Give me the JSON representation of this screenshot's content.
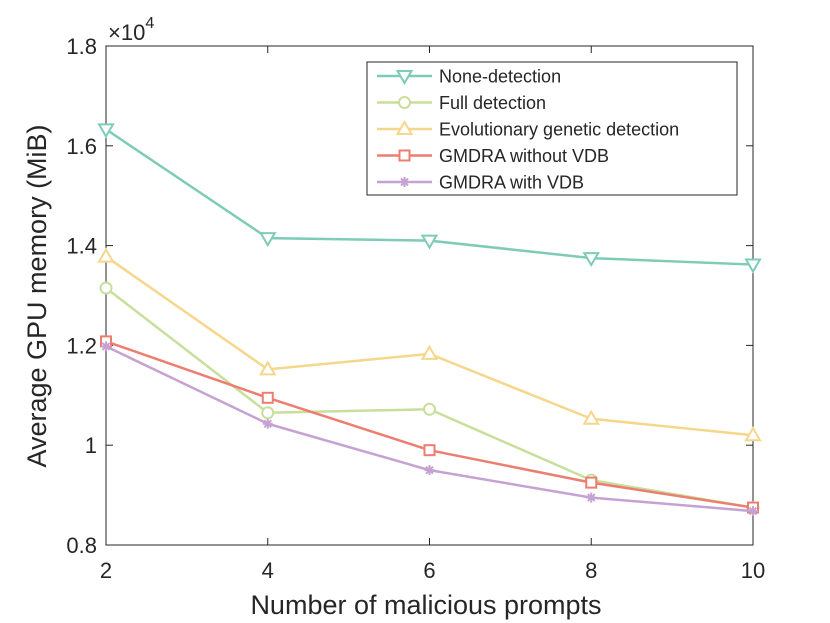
{
  "chart_data": {
    "type": "line",
    "title": "",
    "xlabel": "Number of malicious prompts",
    "ylabel": "Average GPU memory (MiB)",
    "y_multiplier_base": "×10",
    "y_multiplier_exp": "4",
    "x": [
      2,
      4,
      6,
      8,
      10
    ],
    "xlim": [
      2,
      10
    ],
    "ylim": [
      0.8,
      1.8
    ],
    "x_ticks": [
      2,
      4,
      6,
      8,
      10
    ],
    "x_tick_labels": [
      "2",
      "4",
      "6",
      "8",
      "10"
    ],
    "y_ticks": [
      0.8,
      1.0,
      1.2,
      1.4,
      1.6,
      1.8
    ],
    "y_tick_labels": [
      "0.8",
      "1",
      "1.2",
      "1.4",
      "1.6",
      "1.8"
    ],
    "grid": false,
    "legend_position": "top-right",
    "series": [
      {
        "name": "None-detection",
        "color": "#7ecbb7",
        "marker": "triangle-down",
        "values": [
          1.633,
          1.415,
          1.41,
          1.375,
          1.362
        ]
      },
      {
        "name": "Full detection",
        "color": "#c8df9c",
        "marker": "circle",
        "values": [
          1.315,
          1.065,
          1.072,
          0.93,
          0.875
        ]
      },
      {
        "name": "Evolutionary genetic detection",
        "color": "#f6d68a",
        "marker": "triangle-up",
        "values": [
          1.378,
          1.152,
          1.183,
          1.053,
          1.02
        ]
      },
      {
        "name": "GMDRA without VDB",
        "color": "#ec7e6f",
        "marker": "square",
        "values": [
          1.208,
          1.095,
          0.99,
          0.925,
          0.875
        ]
      },
      {
        "name": "GMDRA with VDB",
        "color": "#c6a2d2",
        "marker": "asterisk",
        "values": [
          1.198,
          1.043,
          0.95,
          0.895,
          0.868
        ]
      }
    ]
  }
}
